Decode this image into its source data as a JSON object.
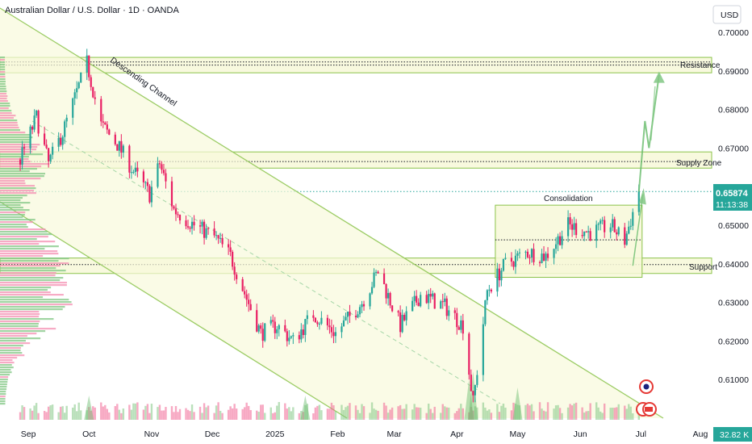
{
  "header": {
    "title": "Australian Dollar / U.S. Dollar · 1D · OANDA",
    "currency": "USD"
  },
  "colors": {
    "up": "#26a69a",
    "down": "#e91e63",
    "zone_fill": "#f7f8d8",
    "zone_stroke": "#8bc34a",
    "channel": "#9ccc65",
    "price_label": "#26a69a",
    "volume_label": "#26a69a"
  },
  "price_label": {
    "price": "0.65874",
    "countdown": "11:13:38"
  },
  "volume_label": "32.82 K",
  "annotations": {
    "descending_channel": "Descending Channel",
    "consolidation": "Consolidation",
    "resistance": "Resistance",
    "supply_zone": "Supply Zone",
    "support": "Support"
  },
  "chart_data": {
    "type": "candlestick",
    "title": "Australian Dollar / U.S. Dollar · 1D · OANDA",
    "ylabel": "USD",
    "ylim": [
      0.6045,
      0.7055
    ],
    "y_ticks": [
      "0.70000",
      "0.69000",
      "0.68000",
      "0.67000",
      "0.66000",
      "0.65000",
      "0.64000",
      "0.63000",
      "0.62000",
      "0.61000"
    ],
    "x_ticks": [
      "Sep",
      "Oct",
      "Nov",
      "Dec",
      "2025",
      "Feb",
      "Mar",
      "Apr",
      "May",
      "Jun",
      "Jul",
      "Aug"
    ],
    "last_price": 0.65874,
    "zones": [
      {
        "name": "Resistance",
        "from": 0.6895,
        "to": 0.6935,
        "levels": [
          0.6923,
          0.6915
        ]
      },
      {
        "name": "Supply Zone",
        "from": 0.6648,
        "to": 0.669,
        "levels": [
          0.6665
        ]
      },
      {
        "name": "Support",
        "from": 0.6375,
        "to": 0.6415,
        "levels": [
          0.6398
        ]
      },
      {
        "name": "Consolidation",
        "from": 0.6365,
        "to": 0.6552,
        "levels": [
          0.6462
        ]
      }
    ],
    "price_path": [
      [
        "2024-08-28",
        0.667
      ],
      [
        "2024-09-05",
        0.678
      ],
      [
        "2024-09-11",
        0.666
      ],
      [
        "2024-09-18",
        0.674
      ],
      [
        "2024-09-30",
        0.692
      ],
      [
        "2024-10-07",
        0.676
      ],
      [
        "2024-10-15",
        0.671
      ],
      [
        "2024-10-23",
        0.664
      ],
      [
        "2024-10-31",
        0.658
      ],
      [
        "2024-11-05",
        0.666
      ],
      [
        "2024-11-12",
        0.654
      ],
      [
        "2024-11-22",
        0.65
      ],
      [
        "2024-12-02",
        0.647
      ],
      [
        "2024-12-10",
        0.642
      ],
      [
        "2024-12-18",
        0.631
      ],
      [
        "2024-12-25",
        0.622
      ],
      [
        "2025-01-02",
        0.624
      ],
      [
        "2025-01-10",
        0.62
      ],
      [
        "2025-01-20",
        0.627
      ],
      [
        "2025-01-31",
        0.622
      ],
      [
        "2025-02-13",
        0.63
      ],
      [
        "2025-02-21",
        0.638
      ],
      [
        "2025-03-04",
        0.624
      ],
      [
        "2025-03-14",
        0.632
      ],
      [
        "2025-03-26",
        0.629
      ],
      [
        "2025-04-04",
        0.624
      ],
      [
        "2025-04-09",
        0.604
      ],
      [
        "2025-04-16",
        0.633
      ],
      [
        "2025-04-25",
        0.64
      ],
      [
        "2025-05-06",
        0.643
      ],
      [
        "2025-05-15",
        0.642
      ],
      [
        "2025-05-26",
        0.65
      ],
      [
        "2025-06-06",
        0.648
      ],
      [
        "2025-06-16",
        0.65
      ],
      [
        "2025-06-23",
        0.646
      ],
      [
        "2025-06-30",
        0.6587
      ]
    ],
    "projection": [
      [
        "2025-06-30",
        0.6587
      ],
      [
        "2025-07-03",
        0.677
      ],
      [
        "2025-07-05",
        0.67
      ],
      [
        "2025-07-10",
        0.689
      ]
    ],
    "volume_profile": "horizontal histogram at left edge",
    "volume_last": "32.82 K"
  }
}
